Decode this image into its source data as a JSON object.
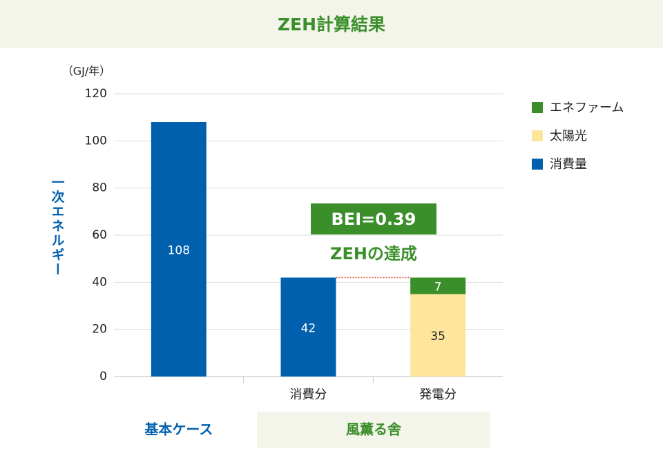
{
  "chart_data": {
    "type": "bar",
    "stacked": true,
    "title": "ZEH計算結果",
    "unit_label": "（GJ/年）",
    "y_label": "一次エネルギー",
    "categories": [
      null,
      "消費分",
      "発電分"
    ],
    "groups": [
      "基本ケース",
      "風薫る舎"
    ],
    "series": [
      {
        "name": "消費量",
        "color": "#0060ae",
        "values": [
          108,
          42,
          null
        ]
      },
      {
        "name": "太陽光",
        "color": "#fde59b",
        "values": [
          null,
          null,
          35
        ]
      },
      {
        "name": "エネファーム",
        "color": "#3a8f2a",
        "values": [
          null,
          null,
          7
        ]
      }
    ],
    "ylim": [
      0,
      120
    ],
    "yticks": [
      0,
      20,
      40,
      60,
      80,
      100,
      120
    ],
    "grid": true,
    "annotations": [
      "BEI=0.39",
      "ZEHの達成"
    ],
    "legend": "right"
  }
}
